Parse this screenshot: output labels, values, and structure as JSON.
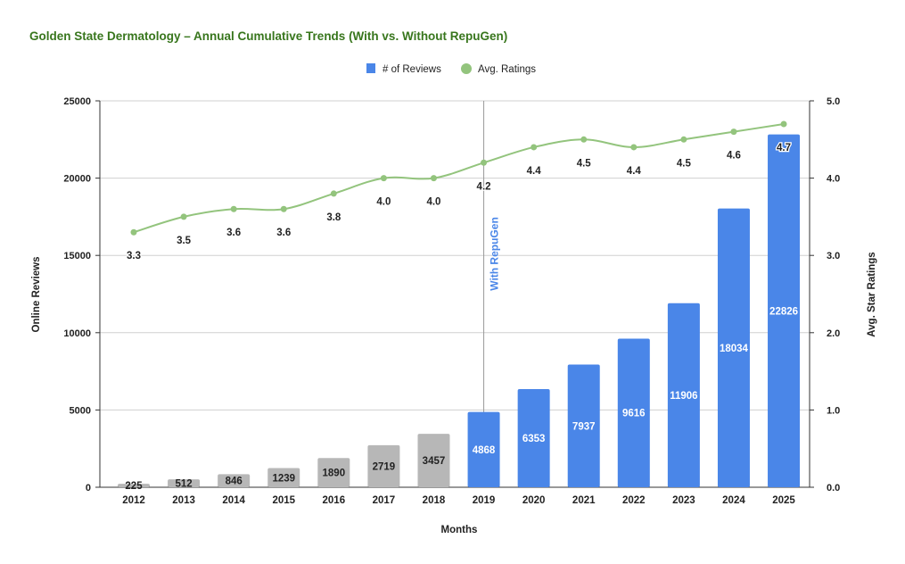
{
  "chart_data": {
    "type": "bar",
    "title": "Golden State Dermatology – Annual Cumulative Trends (With vs. Without RepuGen)",
    "xlabel": "Months",
    "ylabel": "Online Reviews",
    "y2label": "Avg. Star Ratings",
    "categories": [
      "2012",
      "2013",
      "2014",
      "2015",
      "2016",
      "2017",
      "2018",
      "2019",
      "2020",
      "2021",
      "2022",
      "2023",
      "2024",
      "2025"
    ],
    "series": [
      {
        "name": "# of Reviews",
        "type": "bar",
        "axis": "left",
        "color": "#4a86e8",
        "values": [
          225,
          512,
          846,
          1239,
          1890,
          2719,
          3457,
          4868,
          6353,
          7937,
          9616,
          11906,
          18034,
          22826
        ]
      },
      {
        "name": "Avg. Ratings",
        "type": "line",
        "axis": "right",
        "color": "#93c47d",
        "values": [
          3.3,
          3.5,
          3.6,
          3.6,
          3.8,
          4.0,
          4.0,
          4.2,
          4.4,
          4.5,
          4.4,
          4.5,
          4.6,
          4.7
        ]
      }
    ],
    "bar_colors": {
      "without_repugen": "#b7b7b7",
      "with_repugen": "#4a86e8"
    },
    "annotation": {
      "label": "With RepuGen",
      "at": "2019",
      "color": "#4a86e8"
    },
    "ylim": [
      0,
      25000
    ],
    "yticks": [
      "0",
      "5000",
      "10000",
      "15000",
      "20000",
      "25000"
    ],
    "y2lim": [
      0,
      5
    ],
    "y2ticks": [
      "0.0",
      "1.0",
      "2.0",
      "3.0",
      "4.0",
      "5.0"
    ],
    "grid": true,
    "legend": "top",
    "title_color": "#38761d"
  }
}
